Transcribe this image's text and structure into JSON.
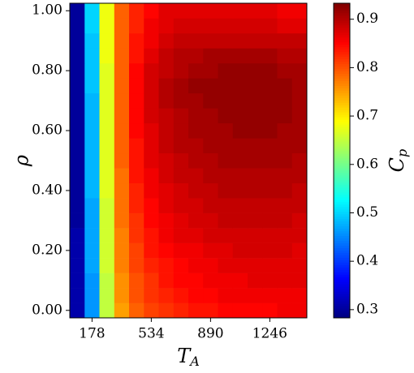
{
  "chart_data": {
    "type": "heatmap",
    "colormap": "jet",
    "x_label": "T",
    "x_label_subscript": "A",
    "y_label": "ρ",
    "colorbar_label": "C",
    "colorbar_label_subscript": "p",
    "x": [
      89,
      178,
      267,
      356,
      445,
      534,
      623,
      712,
      801,
      890,
      979,
      1068,
      1157,
      1246,
      1335,
      1424
    ],
    "y": [
      0,
      0.05,
      0.1,
      0.15,
      0.2,
      0.25,
      0.3,
      0.35,
      0.4,
      0.45,
      0.5,
      0.55,
      0.6,
      0.65,
      0.7,
      0.75,
      0.8,
      0.85,
      0.9,
      0.95,
      1
    ],
    "z": [
      [
        0.31,
        0.46,
        0.65,
        0.75,
        0.79,
        0.81,
        0.82,
        0.83,
        0.84,
        0.84,
        0.85,
        0.85,
        0.85,
        0.85,
        0.86,
        0.86
      ],
      [
        0.31,
        0.46,
        0.65,
        0.76,
        0.8,
        0.82,
        0.83,
        0.84,
        0.85,
        0.85,
        0.86,
        0.86,
        0.86,
        0.86,
        0.86,
        0.86
      ],
      [
        0.31,
        0.46,
        0.65,
        0.76,
        0.8,
        0.82,
        0.84,
        0.85,
        0.85,
        0.86,
        0.86,
        0.86,
        0.87,
        0.87,
        0.87,
        0.87
      ],
      [
        0.31,
        0.47,
        0.66,
        0.77,
        0.81,
        0.83,
        0.84,
        0.85,
        0.86,
        0.86,
        0.87,
        0.87,
        0.87,
        0.87,
        0.87,
        0.87
      ],
      [
        0.31,
        0.47,
        0.66,
        0.77,
        0.81,
        0.84,
        0.85,
        0.86,
        0.86,
        0.87,
        0.87,
        0.88,
        0.88,
        0.88,
        0.88,
        0.87
      ],
      [
        0.31,
        0.47,
        0.66,
        0.77,
        0.82,
        0.84,
        0.86,
        0.87,
        0.87,
        0.88,
        0.88,
        0.88,
        0.88,
        0.88,
        0.88,
        0.88
      ],
      [
        0.3,
        0.47,
        0.66,
        0.78,
        0.82,
        0.85,
        0.86,
        0.87,
        0.88,
        0.88,
        0.89,
        0.89,
        0.89,
        0.89,
        0.89,
        0.88
      ],
      [
        0.3,
        0.47,
        0.66,
        0.78,
        0.83,
        0.85,
        0.87,
        0.88,
        0.88,
        0.89,
        0.89,
        0.89,
        0.89,
        0.89,
        0.89,
        0.89
      ],
      [
        0.3,
        0.48,
        0.67,
        0.78,
        0.83,
        0.86,
        0.87,
        0.88,
        0.89,
        0.89,
        0.9,
        0.9,
        0.9,
        0.9,
        0.9,
        0.89
      ],
      [
        0.3,
        0.48,
        0.67,
        0.78,
        0.84,
        0.86,
        0.88,
        0.89,
        0.89,
        0.9,
        0.9,
        0.9,
        0.9,
        0.9,
        0.9,
        0.9
      ],
      [
        0.3,
        0.48,
        0.67,
        0.79,
        0.84,
        0.87,
        0.88,
        0.89,
        0.9,
        0.9,
        0.91,
        0.91,
        0.91,
        0.91,
        0.91,
        0.9
      ],
      [
        0.3,
        0.48,
        0.67,
        0.79,
        0.84,
        0.87,
        0.89,
        0.9,
        0.9,
        0.91,
        0.91,
        0.91,
        0.91,
        0.91,
        0.91,
        0.91
      ],
      [
        0.3,
        0.48,
        0.67,
        0.79,
        0.85,
        0.87,
        0.89,
        0.9,
        0.91,
        0.91,
        0.91,
        0.92,
        0.92,
        0.92,
        0.91,
        0.91
      ],
      [
        0.3,
        0.48,
        0.67,
        0.79,
        0.85,
        0.88,
        0.89,
        0.9,
        0.91,
        0.91,
        0.92,
        0.92,
        0.92,
        0.92,
        0.92,
        0.91
      ],
      [
        0.3,
        0.48,
        0.67,
        0.79,
        0.85,
        0.88,
        0.9,
        0.91,
        0.91,
        0.92,
        0.92,
        0.92,
        0.92,
        0.92,
        0.92,
        0.91
      ],
      [
        0.3,
        0.49,
        0.67,
        0.79,
        0.85,
        0.88,
        0.9,
        0.91,
        0.92,
        0.92,
        0.92,
        0.92,
        0.92,
        0.92,
        0.92,
        0.91
      ],
      [
        0.3,
        0.49,
        0.67,
        0.79,
        0.85,
        0.88,
        0.89,
        0.9,
        0.91,
        0.91,
        0.92,
        0.92,
        0.92,
        0.92,
        0.91,
        0.91
      ],
      [
        0.3,
        0.49,
        0.68,
        0.79,
        0.84,
        0.87,
        0.89,
        0.9,
        0.9,
        0.91,
        0.91,
        0.91,
        0.91,
        0.91,
        0.9,
        0.9
      ],
      [
        0.3,
        0.49,
        0.68,
        0.79,
        0.84,
        0.86,
        0.88,
        0.89,
        0.89,
        0.89,
        0.89,
        0.89,
        0.89,
        0.89,
        0.89,
        0.89
      ],
      [
        0.3,
        0.5,
        0.68,
        0.79,
        0.83,
        0.86,
        0.87,
        0.88,
        0.88,
        0.88,
        0.88,
        0.88,
        0.88,
        0.88,
        0.87,
        0.87
      ],
      [
        0.3,
        0.5,
        0.68,
        0.79,
        0.83,
        0.85,
        0.87,
        0.87,
        0.87,
        0.87,
        0.87,
        0.87,
        0.87,
        0.87,
        0.86,
        0.86
      ]
    ],
    "xlim": [
      44.5,
      1468.5
    ],
    "ylim": [
      -0.025,
      1.025
    ],
    "xticks": [
      178,
      534,
      890,
      1246
    ],
    "yticks": [
      {
        "value": 0,
        "label": "0.00"
      },
      {
        "value": 0.2,
        "label": "0.20"
      },
      {
        "value": 0.4,
        "label": "0.40"
      },
      {
        "value": 0.6,
        "label": "0.60"
      },
      {
        "value": 0.8,
        "label": "0.80"
      },
      {
        "value": 1,
        "label": "1.00"
      }
    ],
    "zlim": [
      0.283,
      0.933
    ],
    "zticks": [
      0.3,
      0.4,
      0.5,
      0.6,
      0.7,
      0.8,
      0.9
    ]
  }
}
